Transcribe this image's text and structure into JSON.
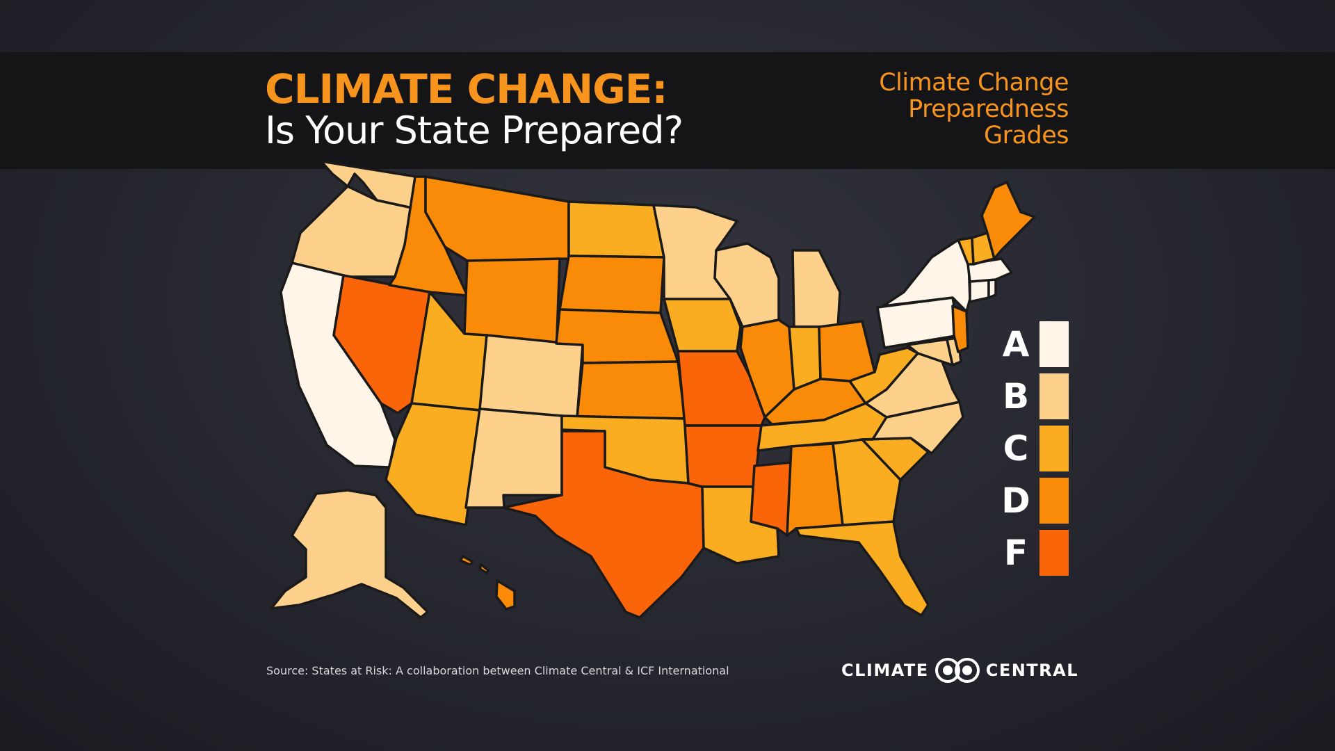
{
  "title": {
    "line1": "CLIMATE CHANGE:",
    "line2": "Is Your State Prepared?"
  },
  "legend": {
    "title_lines": [
      "Climate Change",
      "Preparedness",
      "Grades"
    ],
    "grades": [
      {
        "label": "A",
        "color": "#fff5e8"
      },
      {
        "label": "B",
        "color": "#fdd08b"
      },
      {
        "label": "C",
        "color": "#fbad22"
      },
      {
        "label": "D",
        "color": "#f98b08"
      },
      {
        "label": "F",
        "color": "#fb6509"
      }
    ]
  },
  "state_grades": {
    "WA": "B",
    "OR": "B",
    "CA": "A",
    "NV": "F",
    "ID": "D",
    "MT": "D",
    "WY": "D",
    "UT": "C",
    "CO": "B",
    "AZ": "C",
    "NM": "B",
    "ND": "C",
    "SD": "D",
    "NE": "D",
    "KS": "D",
    "OK": "C",
    "TX": "F",
    "MN": "B",
    "IA": "C",
    "MO": "F",
    "AR": "F",
    "LA": "C",
    "WI": "B",
    "IL": "D",
    "MS": "F",
    "MI": "B",
    "IN": "C",
    "OH": "D",
    "KY": "D",
    "TN": "C",
    "AL": "D",
    "GA": "C",
    "FL": "C",
    "SC": "C",
    "NC": "B",
    "VA": "B",
    "WV": "C",
    "MD": "B",
    "DE": "B",
    "PA": "A",
    "NJ": "D",
    "NY": "A",
    "CT": "A",
    "RI": "A",
    "MA": "A",
    "VT": "C",
    "NH": "C",
    "ME": "D",
    "AK": "B",
    "HI": "D"
  },
  "source": "Source: States at Risk: A collaboration between Climate Central & ICF International",
  "logo": {
    "left": "CLIMATE",
    "right": "CENTRAL"
  }
}
